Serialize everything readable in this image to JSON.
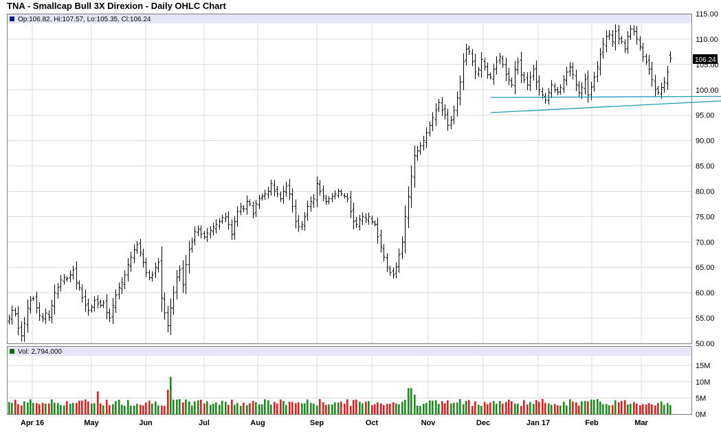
{
  "title": "TNA - Smallcap Bull 3X Direxion - Daily OHLC Chart",
  "legend": {
    "price_text": "Op:106.82, Hi:107.57, Lo:105.35, Cl:106.24",
    "volume_text": "Vol: 2,794,000"
  },
  "last_price_tag": "106.24",
  "colors": {
    "up_volume": "#1a8a1a",
    "down_volume": "#e01b1b",
    "ohlc_bar": "#000000",
    "trendline": "#1e9ab8",
    "legend_bg": "#e6e6f8",
    "legend_swatch": "#0a6e0a",
    "grid": "#d9d9d9"
  },
  "chart_data": [
    {
      "type": "ohlc",
      "title": "TNA - Smallcap Bull 3X Direxion - Daily OHLC Chart",
      "ylim": [
        50,
        115
      ],
      "y_ticks": [
        "115.00",
        "110.00",
        "105.00",
        "100.00",
        "95.00",
        "90.00",
        "85.00",
        "80.00",
        "75.00",
        "70.00",
        "65.00",
        "60.00",
        "55.00",
        "50.00"
      ],
      "x_ticks": [
        "Apr 16",
        "May",
        "Jun",
        "Jul",
        "Aug",
        "Sep",
        "Oct",
        "Nov",
        "Dec",
        "Jan 17",
        "Feb",
        "Mar"
      ],
      "grid": true,
      "last": {
        "open": 106.82,
        "high": 107.57,
        "low": 105.35,
        "close": 106.24
      },
      "closes": [
        55.0,
        56.5,
        55.8,
        53.0,
        51.5,
        54.0,
        57.0,
        58.5,
        58.8,
        57.0,
        55.5,
        55.0,
        56.0,
        55.2,
        57.5,
        60.0,
        61.0,
        62.5,
        63.0,
        62.8,
        63.5,
        64.5,
        62.0,
        61.0,
        59.0,
        57.5,
        56.5,
        57.2,
        58.5,
        57.8,
        57.5,
        58.0,
        56.0,
        55.0,
        57.5,
        59.5,
        61.0,
        62.0,
        63.5,
        65.5,
        67.0,
        68.5,
        69.5,
        68.0,
        66.0,
        64.0,
        63.0,
        63.5,
        65.0,
        66.0,
        59.0,
        56.0,
        53.5,
        57.0,
        60.0,
        63.0,
        64.5,
        61.5,
        65.5,
        68.5,
        70.0,
        72.0,
        72.5,
        71.5,
        71.0,
        71.8,
        72.3,
        73.0,
        73.5,
        74.0,
        74.8,
        75.0,
        73.5,
        71.5,
        74.0,
        76.0,
        77.0,
        76.5,
        78.0,
        77.5,
        75.5,
        77.5,
        78.5,
        79.0,
        79.5,
        80.0,
        81.5,
        80.0,
        79.5,
        78.5,
        80.0,
        81.0,
        79.5,
        77.0,
        74.0,
        73.0,
        73.5,
        75.0,
        77.0,
        78.0,
        78.5,
        81.5,
        80.0,
        79.0,
        78.0,
        78.5,
        79.0,
        79.5,
        80.0,
        79.5,
        79.0,
        78.5,
        76.0,
        74.0,
        73.5,
        74.5,
        75.0,
        74.5,
        75.0,
        74.0,
        73.5,
        71.0,
        69.0,
        67.0,
        65.0,
        64.0,
        63.5,
        65.0,
        67.5,
        70.0,
        75.0,
        79.0,
        83.0,
        87.0,
        88.0,
        89.0,
        90.0,
        91.5,
        93.0,
        94.5,
        96.0,
        97.5,
        96.0,
        95.0,
        93.0,
        94.0,
        96.0,
        98.5,
        101.5,
        105.5,
        108.0,
        107.5,
        105.5,
        103.5,
        104.0,
        106.0,
        104.5,
        103.0,
        102.5,
        104.0,
        105.5,
        106.5,
        105.0,
        103.0,
        102.0,
        101.0,
        104.0,
        105.5,
        103.0,
        102.0,
        101.0,
        102.5,
        104.0,
        101.5,
        100.0,
        99.0,
        98.0,
        99.5,
        101.0,
        100.0,
        99.5,
        100.5,
        102.0,
        103.5,
        104.5,
        103.0,
        101.0,
        99.5,
        100.5,
        102.0,
        99.0,
        100.5,
        102.5,
        104.5,
        107.0,
        109.0,
        110.5,
        111.0,
        109.5,
        111.5,
        110.0,
        109.5,
        108.0,
        110.5,
        112.0,
        111.5,
        110.0,
        108.5,
        106.5,
        105.5,
        104.0,
        102.0,
        100.0,
        99.5,
        100.5,
        101.5,
        103.5,
        106.24
      ],
      "trendlines": [
        {
          "from": "Nov",
          "from_value": 95.5,
          "to": "end",
          "to_value": 97.8
        },
        {
          "from": "Nov",
          "from_value": 98.5,
          "to": "end",
          "to_value": 98.7
        }
      ]
    },
    {
      "type": "bar",
      "name": "Volume",
      "ylim": [
        0,
        18
      ],
      "y_ticks": [
        "15M",
        "10M",
        "5M",
        "0M"
      ],
      "last_volume": 2794000
    }
  ]
}
